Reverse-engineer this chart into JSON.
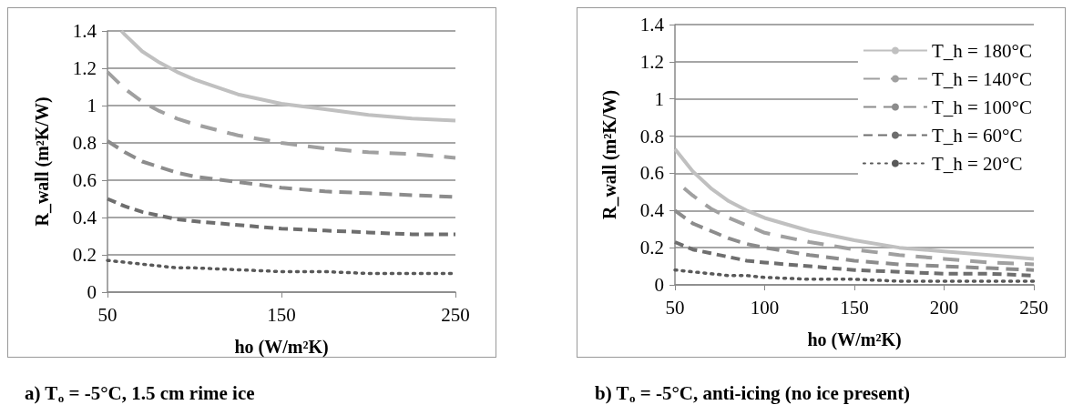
{
  "chart_data": [
    {
      "type": "line",
      "title": "a) T$_{o}$ = -5°C, 1.5 cm rime ice",
      "xlabel": "ho (W/m²K)",
      "ylabel": "R_wall (m²K/W)",
      "xlim": [
        50,
        250
      ],
      "xticks": [
        50,
        150,
        250
      ],
      "ylim": [
        0,
        1.4
      ],
      "yticks": [
        0,
        0.2,
        0.4,
        0.6,
        0.8,
        1,
        1.2,
        1.4
      ],
      "grid": "y",
      "legend": false,
      "marker": "none",
      "x": [
        50,
        60,
        70,
        80,
        90,
        100,
        125,
        150,
        175,
        200,
        225,
        250
      ],
      "series": [
        {
          "color": "#c0c0c0",
          "line_style": "solid",
          "x": [
            58,
            60,
            70,
            80,
            90,
            100,
            125,
            150,
            175,
            200,
            225,
            250
          ],
          "values": [
            1.4,
            1.38,
            1.29,
            1.23,
            1.18,
            1.14,
            1.06,
            1.01,
            0.98,
            0.95,
            0.93,
            0.92
          ]
        },
        {
          "color": "#a0a0a0",
          "line_style": "dashed",
          "values": [
            1.18,
            1.09,
            1.02,
            0.97,
            0.93,
            0.9,
            0.84,
            0.8,
            0.77,
            0.75,
            0.74,
            0.72
          ]
        },
        {
          "color": "#8c8c8c",
          "line_style": "dashed",
          "values": [
            0.81,
            0.75,
            0.7,
            0.67,
            0.64,
            0.62,
            0.59,
            0.56,
            0.54,
            0.53,
            0.52,
            0.51
          ]
        },
        {
          "color": "#6e6e6e",
          "line_style": "dashed",
          "values": [
            0.5,
            0.46,
            0.43,
            0.41,
            0.39,
            0.38,
            0.36,
            0.34,
            0.33,
            0.32,
            0.31,
            0.31
          ]
        },
        {
          "color": "#595959",
          "line_style": "dotted",
          "values": [
            0.17,
            0.16,
            0.15,
            0.14,
            0.13,
            0.13,
            0.12,
            0.11,
            0.11,
            0.1,
            0.1,
            0.1
          ]
        }
      ]
    },
    {
      "type": "line",
      "title": "b) T$_{o}$ = -5°C, anti-icing (no ice present)",
      "xlabel": "ho (W/m²K)",
      "ylabel": "R_wall (m²K/W)",
      "xlim": [
        50,
        250
      ],
      "xticks": [
        50,
        100,
        150,
        200,
        250
      ],
      "ylim": [
        0,
        1.4
      ],
      "yticks": [
        0,
        0.2,
        0.4,
        0.6,
        0.8,
        1,
        1.2,
        1.4
      ],
      "grid": "y",
      "legend": "top right",
      "marker": "none",
      "x": [
        50,
        60,
        70,
        80,
        90,
        100,
        125,
        150,
        175,
        200,
        225,
        250
      ],
      "series": [
        {
          "name": "T_h = 180°C",
          "color": "#c0c0c0",
          "line_style": "solid",
          "values": [
            0.73,
            0.61,
            0.52,
            0.45,
            0.4,
            0.36,
            0.29,
            0.24,
            0.2,
            0.18,
            0.16,
            0.14
          ]
        },
        {
          "name": "T_h = 140°C",
          "color": "#a0a0a0",
          "line_style": "dashed",
          "x": [
            55,
            60,
            70,
            80,
            90,
            100,
            125,
            150,
            175,
            200,
            225,
            250
          ],
          "values": [
            0.52,
            0.48,
            0.41,
            0.36,
            0.32,
            0.28,
            0.23,
            0.19,
            0.16,
            0.14,
            0.12,
            0.11
          ]
        },
        {
          "name": "T_h = 100°C",
          "color": "#8c8c8c",
          "line_style": "dashed",
          "values": [
            0.4,
            0.33,
            0.29,
            0.25,
            0.22,
            0.2,
            0.16,
            0.13,
            0.11,
            0.1,
            0.09,
            0.08
          ]
        },
        {
          "name": "T_h = 60°C",
          "color": "#6e6e6e",
          "line_style": "dashed",
          "values": [
            0.23,
            0.19,
            0.17,
            0.15,
            0.13,
            0.12,
            0.1,
            0.08,
            0.07,
            0.06,
            0.06,
            0.05
          ]
        },
        {
          "name": "T_h = 20°C",
          "color": "#595959",
          "line_style": "dotted",
          "values": [
            0.08,
            0.07,
            0.06,
            0.05,
            0.05,
            0.04,
            0.03,
            0.03,
            0.02,
            0.02,
            0.02,
            0.02
          ]
        }
      ]
    }
  ]
}
